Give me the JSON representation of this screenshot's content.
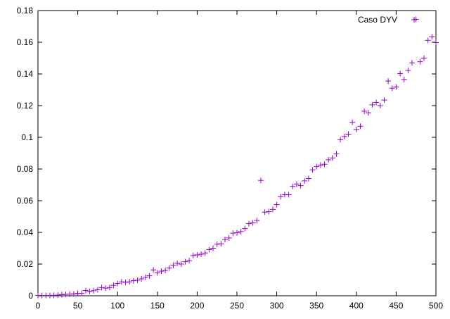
{
  "chart_data": {
    "type": "scatter",
    "title": "",
    "xlabel": "",
    "ylabel": "",
    "xlim": [
      0,
      500
    ],
    "ylim": [
      0,
      0.18
    ],
    "xticks": [
      0,
      50,
      100,
      150,
      200,
      250,
      300,
      350,
      400,
      450,
      500
    ],
    "xtick_labels": [
      "0",
      "50",
      "100",
      "150",
      "200",
      "250",
      "300",
      "350",
      "400",
      "450",
      "500"
    ],
    "yticks": [
      0,
      0.02,
      0.04,
      0.06,
      0.08,
      0.1,
      0.12,
      0.14,
      0.16,
      0.18
    ],
    "ytick_labels": [
      "0",
      "0.02",
      "0.04",
      "0.06",
      "0.08",
      "0.1",
      "0.12",
      "0.14",
      "0.16",
      "0.18"
    ],
    "grid": false,
    "legend_position": "top-right",
    "marker": "plus",
    "colors": {
      "series": "#9400d3",
      "axis": "#000000",
      "background": "#ffffff"
    },
    "series": [
      {
        "name": "Caso DYV",
        "x": [
          0,
          5,
          10,
          15,
          20,
          25,
          30,
          35,
          40,
          45,
          50,
          55,
          60,
          65,
          70,
          75,
          80,
          85,
          90,
          95,
          100,
          105,
          110,
          115,
          120,
          125,
          130,
          135,
          140,
          145,
          150,
          155,
          160,
          165,
          170,
          175,
          180,
          185,
          190,
          195,
          200,
          205,
          210,
          215,
          220,
          225,
          230,
          235,
          240,
          245,
          250,
          255,
          260,
          265,
          270,
          275,
          280,
          285,
          290,
          295,
          300,
          305,
          310,
          315,
          320,
          325,
          330,
          335,
          340,
          345,
          350,
          355,
          360,
          365,
          370,
          375,
          380,
          385,
          390,
          395,
          400,
          405,
          410,
          415,
          420,
          425,
          430,
          435,
          440,
          445,
          450,
          455,
          460,
          465,
          470,
          475,
          480,
          485,
          490,
          495,
          500
        ],
        "y": [
          0.0002,
          0.0002,
          0.0002,
          0.0002,
          0.0003,
          0.0004,
          0.0007,
          0.0009,
          0.001,
          0.0012,
          0.0015,
          0.0016,
          0.0033,
          0.0028,
          0.0032,
          0.0038,
          0.0052,
          0.0048,
          0.0052,
          0.0066,
          0.0078,
          0.0088,
          0.0085,
          0.0088,
          0.0095,
          0.0098,
          0.0107,
          0.0116,
          0.0126,
          0.0163,
          0.0144,
          0.0155,
          0.016,
          0.0175,
          0.0193,
          0.0205,
          0.02,
          0.0215,
          0.0222,
          0.0254,
          0.0258,
          0.0262,
          0.027,
          0.0291,
          0.03,
          0.0325,
          0.0328,
          0.0355,
          0.0365,
          0.0395,
          0.0398,
          0.0405,
          0.0424,
          0.0455,
          0.046,
          0.0475,
          0.0728,
          0.0528,
          0.0531,
          0.0545,
          0.0575,
          0.0625,
          0.0638,
          0.0638,
          0.069,
          0.0705,
          0.0695,
          0.0725,
          0.074,
          0.0795,
          0.0815,
          0.0825,
          0.083,
          0.0858,
          0.087,
          0.0895,
          0.0985,
          0.1005,
          0.102,
          0.1095,
          0.105,
          0.107,
          0.1165,
          0.1155,
          0.1205,
          0.122,
          0.12,
          0.1235,
          0.1355,
          0.131,
          0.1318,
          0.1402,
          0.1365,
          0.1422,
          0.147,
          0.1745,
          0.1477,
          0.15,
          0.1612,
          0.1635,
          0.1598
        ]
      }
    ]
  }
}
